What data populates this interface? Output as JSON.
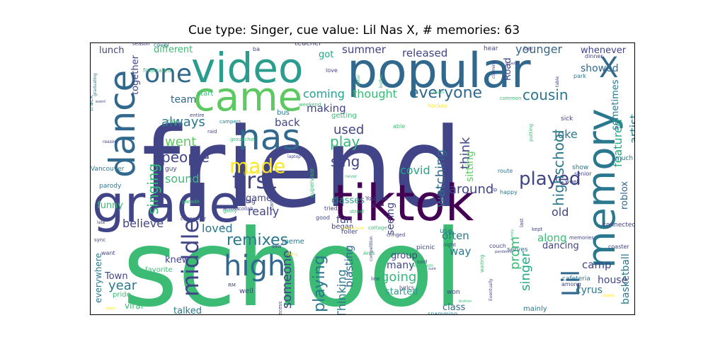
{
  "chart_data": {
    "type": "wordcloud",
    "title": "Cue type: Singer, cue value: Lil Nas X, # memories: 63",
    "words": [
      {
        "text": "friend",
        "color": "#414487",
        "weight": 100
      },
      {
        "text": "school",
        "color": "#3cbb75",
        "weight": 98
      },
      {
        "text": "popular",
        "color": "#31688e",
        "weight": 58
      },
      {
        "text": "tiktok",
        "color": "#440154",
        "weight": 52
      },
      {
        "text": "grade",
        "color": "#414487",
        "weight": 50
      },
      {
        "text": "video",
        "color": "#2a9d8e",
        "weight": 45
      },
      {
        "text": "memory",
        "color": "#2a788e",
        "weight": 44
      },
      {
        "text": "came",
        "color": "#5ec962",
        "weight": 40
      },
      {
        "text": "dance",
        "color": "#31688e",
        "weight": 38
      },
      {
        "text": "nas",
        "color": "#31688e",
        "weight": 38
      },
      {
        "text": "X",
        "color": "#31688e",
        "weight": 30
      },
      {
        "text": "first",
        "color": "#414487",
        "weight": 26
      },
      {
        "text": "high",
        "color": "#31688e",
        "weight": 26
      },
      {
        "text": "middle",
        "color": "#414487",
        "weight": 24
      },
      {
        "text": "Lil",
        "color": "#31688e",
        "weight": 24
      },
      {
        "text": "one",
        "color": "#31688e",
        "weight": 24
      },
      {
        "text": "made",
        "color": "#fde725",
        "weight": 20
      },
      {
        "text": "played",
        "color": "#414487",
        "weight": 18
      },
      {
        "text": "everyone",
        "color": "#31688e",
        "weight": 16
      },
      {
        "text": "highschool",
        "color": "#2a788e",
        "weight": 16
      },
      {
        "text": "remixes",
        "color": "#2a788e",
        "weight": 16
      },
      {
        "text": "playing",
        "color": "#2a788e",
        "weight": 16
      },
      {
        "text": "singing",
        "color": "#35b779",
        "weight": 16
      },
      {
        "text": "watching",
        "color": "#31688e",
        "weight": 15
      },
      {
        "text": "sing",
        "color": "#414487",
        "weight": 15
      },
      {
        "text": "play",
        "color": "#35b779",
        "weight": 15
      },
      {
        "text": "people",
        "color": "#414487",
        "weight": 14
      },
      {
        "text": "cousin",
        "color": "#2a788e",
        "weight": 14
      },
      {
        "text": "went",
        "color": "#5ec962",
        "weight": 14
      },
      {
        "text": "used",
        "color": "#414487",
        "weight": 14
      },
      {
        "text": "year",
        "color": "#2a788e",
        "weight": 14
      },
      {
        "text": "someone",
        "color": "#414487",
        "weight": 14
      },
      {
        "text": "going",
        "color": "#35b779",
        "weight": 14
      },
      {
        "text": "always",
        "color": "#2a788e",
        "weight": 13
      },
      {
        "text": "around",
        "color": "#414487",
        "weight": 13
      },
      {
        "text": "think",
        "color": "#414487",
        "weight": 13
      },
      {
        "text": "prom",
        "color": "#3cbb75",
        "weight": 13
      },
      {
        "text": "singer",
        "color": "#22a884",
        "weight": 13
      },
      {
        "text": "Thinking",
        "color": "#2a788e",
        "weight": 12
      },
      {
        "text": "artist",
        "color": "#2a788e",
        "weight": 12
      },
      {
        "text": "featured",
        "color": "#22a884",
        "weight": 12
      },
      {
        "text": "younger",
        "color": "#31688e",
        "weight": 12
      },
      {
        "text": "coming",
        "color": "#2a9d8e",
        "weight": 12
      },
      {
        "text": "thought",
        "color": "#3cbb75",
        "weight": 12
      },
      {
        "text": "covid",
        "color": "#22a884",
        "weight": 12
      },
      {
        "text": "sound",
        "color": "#3cbb75",
        "weight": 12
      },
      {
        "text": "loved",
        "color": "#2a788e",
        "weight": 12
      },
      {
        "text": "believe",
        "color": "#414487",
        "weight": 12
      },
      {
        "text": "really",
        "color": "#414487",
        "weight": 12
      },
      {
        "text": "released",
        "color": "#414487",
        "weight": 11
      },
      {
        "text": "summer",
        "color": "#414487",
        "weight": 11
      },
      {
        "text": "back",
        "color": "#414487",
        "weight": 11
      },
      {
        "text": "making",
        "color": "#414487",
        "weight": 11
      },
      {
        "text": "sitting",
        "color": "#5ec962",
        "weight": 11
      },
      {
        "text": "along",
        "color": "#3cbb75",
        "weight": 11
      },
      {
        "text": "old",
        "color": "#414487",
        "weight": 11
      },
      {
        "text": "often",
        "color": "#2a788e",
        "weight": 11
      },
      {
        "text": "way",
        "color": "#2a788e",
        "weight": 11
      },
      {
        "text": "blasting",
        "color": "#31688e",
        "weight": 11
      },
      {
        "text": "seeing",
        "color": "#414487",
        "weight": 11
      },
      {
        "text": "fun",
        "color": "#414487",
        "weight": 11
      },
      {
        "text": "many",
        "color": "#414487",
        "weight": 11
      },
      {
        "text": "joke",
        "color": "#2a788e",
        "weight": 11
      },
      {
        "text": "showed",
        "color": "#31688e",
        "weight": 11
      },
      {
        "text": "basketball",
        "color": "#2a788e",
        "weight": 10
      },
      {
        "text": "camp",
        "color": "#414487",
        "weight": 10
      },
      {
        "text": "cyrus",
        "color": "#2a788e",
        "weight": 10
      },
      {
        "text": "dancing",
        "color": "#414487",
        "weight": 10
      },
      {
        "text": "house",
        "color": "#414487",
        "weight": 10
      },
      {
        "text": "roblox",
        "color": "#31688e",
        "weight": 10
      },
      {
        "text": "sometimes",
        "color": "#2a788e",
        "weight": 10
      },
      {
        "text": "whenever",
        "color": "#414487",
        "weight": 10
      },
      {
        "text": "team",
        "color": "#31688e",
        "weight": 10
      },
      {
        "text": "together",
        "color": "#414487",
        "weight": 10
      },
      {
        "text": "Road",
        "color": "#414487",
        "weight": 10
      },
      {
        "text": "got",
        "color": "#22a884",
        "weight": 10
      },
      {
        "text": "lunch",
        "color": "#414487",
        "weight": 10
      },
      {
        "text": "different",
        "color": "#3cbb75",
        "weight": 10
      },
      {
        "text": "Town",
        "color": "#414487",
        "weight": 10
      },
      {
        "text": "knew",
        "color": "#414487",
        "weight": 10
      },
      {
        "text": "funny",
        "color": "#3cbb75",
        "weight": 10
      },
      {
        "text": "class",
        "color": "#31688e",
        "weight": 10
      },
      {
        "text": "classes",
        "color": "#2a9d8e",
        "weight": 10
      },
      {
        "text": "started",
        "color": "#2a9d8e",
        "weight": 10
      },
      {
        "text": "group",
        "color": "#414487",
        "weight": 10
      },
      {
        "text": "game",
        "color": "#414487",
        "weight": 9
      },
      {
        "text": "BTS",
        "color": "#31688e",
        "weight": 9
      },
      {
        "text": "everywhere",
        "color": "#2a788e",
        "weight": 9
      },
      {
        "text": "talked",
        "color": "#2a788e",
        "weight": 9
      },
      {
        "text": "viral",
        "color": "#3cbb75",
        "weight": 9
      },
      {
        "text": "mainly",
        "color": "#2a788e",
        "weight": 8
      },
      {
        "text": "meme",
        "color": "#2a788e",
        "weight": 8
      },
      {
        "text": "start",
        "color": "#3cbb75",
        "weight": 8
      },
      {
        "text": "bus",
        "color": "#2a788e",
        "weight": 8
      },
      {
        "text": "getting",
        "color": "#3cbb75",
        "weight": 8
      },
      {
        "text": "teacher",
        "color": "#414487",
        "weight": 8
      },
      {
        "text": "favorite",
        "color": "#3cbb75",
        "weight": 8
      },
      {
        "text": "pride",
        "color": "#3cbb75",
        "weight": 8
      },
      {
        "text": "began",
        "color": "#414487",
        "weight": 8
      },
      {
        "text": "use",
        "color": "#2a788e",
        "weight": 8
      },
      {
        "text": "picnic",
        "color": "#414487",
        "weight": 8
      },
      {
        "text": "cafeteria",
        "color": "#2a788e",
        "weight": 8
      },
      {
        "text": "serves",
        "color": "#31688e",
        "weight": 8
      },
      {
        "text": "show",
        "color": "#2a788e",
        "weight": 8
      },
      {
        "text": "much",
        "color": "#2a788e",
        "weight": 8
      },
      {
        "text": "connected",
        "color": "#414487",
        "weight": 8
      },
      {
        "text": "well",
        "color": "#414487",
        "weight": 8
      },
      {
        "text": "parody",
        "color": "#2a788e",
        "weight": 7
      },
      {
        "text": "guy",
        "color": "#414487",
        "weight": 7
      },
      {
        "text": "ray",
        "color": "#3cbb75",
        "weight": 7
      },
      {
        "text": "track",
        "color": "#2a788e",
        "weight": 7
      },
      {
        "text": "big",
        "color": "#414487",
        "weight": 7
      },
      {
        "text": "want",
        "color": "#414487",
        "weight": 7
      },
      {
        "text": "Vancouver",
        "color": "#2a788e",
        "weight": 7
      },
      {
        "text": "sick",
        "color": "#414487",
        "weight": 7
      },
      {
        "text": "week",
        "color": "#414487",
        "weight": 7
      },
      {
        "text": "senior",
        "color": "#414487",
        "weight": 7
      },
      {
        "text": "park",
        "color": "#2a788e",
        "weight": 7
      },
      {
        "text": "dinner",
        "color": "#414487",
        "weight": 7
      },
      {
        "text": "bar",
        "color": "#414487",
        "weight": 7
      },
      {
        "text": "hear",
        "color": "#414487",
        "weight": 7
      },
      {
        "text": "cover",
        "color": "#2a788e",
        "weight": 7
      },
      {
        "text": "season",
        "color": "#414487",
        "weight": 6
      },
      {
        "text": "ba",
        "color": "#414487",
        "weight": 7
      },
      {
        "text": "love",
        "color": "#414487",
        "weight": 7
      },
      {
        "text": "frustrated",
        "color": "#3cbb75",
        "weight": 7
      },
      {
        "text": "RM",
        "color": "#414487",
        "weight": 6
      },
      {
        "text": "saw",
        "color": "#414487",
        "weight": 6
      },
      {
        "text": "lyrics",
        "color": "#414487",
        "weight": 7
      },
      {
        "text": "said",
        "color": "#414487",
        "weight": 6
      },
      {
        "text": "won",
        "color": "#414487",
        "weight": 7
      },
      {
        "text": "roller",
        "color": "#414487",
        "weight": 7
      },
      {
        "text": "coaster",
        "color": "#414487",
        "weight": 7
      },
      {
        "text": "kept",
        "color": "#414487",
        "weight": 6
      },
      {
        "text": "last",
        "color": "#414487",
        "weight": 6
      },
      {
        "text": "memories",
        "color": "#414487",
        "weight": 6
      },
      {
        "text": "couch",
        "color": "#414487",
        "weight": 6
      },
      {
        "text": "night",
        "color": "#414487",
        "weight": 6
      },
      {
        "text": "street",
        "color": "#3cbb75",
        "weight": 6
      },
      {
        "text": "tried",
        "color": "#414487",
        "weight": 6
      },
      {
        "text": "good",
        "color": "#414487",
        "weight": 6
      },
      {
        "text": "line",
        "color": "#414487",
        "weight": 6
      },
      {
        "text": "recess",
        "color": "#414487",
        "weight": 6
      },
      {
        "text": "collab",
        "color": "#414487",
        "weight": 6
      },
      {
        "text": "across",
        "color": "#414487",
        "weight": 6
      },
      {
        "text": "Canada",
        "color": "#414487",
        "weight": 6
      },
      {
        "text": "supervisor",
        "color": "#3cbb75",
        "weight": 6
      },
      {
        "text": "able",
        "color": "#3cbb75",
        "weight": 6
      },
      {
        "text": "Youtube",
        "color": "#414487",
        "weight": 6
      },
      {
        "text": "route",
        "color": "#2a788e",
        "weight": 6
      },
      {
        "text": "happy",
        "color": "#2a788e",
        "weight": 6
      },
      {
        "text": "hockey",
        "color": "#fde725",
        "weight": 6
      },
      {
        "text": "common",
        "color": "#3cbb75",
        "weight": 6
      },
      {
        "text": "putting",
        "color": "#3cbb75",
        "weight": 6
      },
      {
        "text": "weekend",
        "color": "#3cbb75",
        "weight": 6
      },
      {
        "text": "campers",
        "color": "#2a788e",
        "weight": 6
      },
      {
        "text": "groupchat",
        "color": "#3cbb75",
        "weight": 6
      },
      {
        "text": "raid",
        "color": "#414487",
        "weight": 6
      },
      {
        "text": "entire",
        "color": "#414487",
        "weight": 6
      },
      {
        "text": "reason",
        "color": "#414487",
        "weight": 6
      },
      {
        "text": "late",
        "color": "#414487",
        "weight": 6
      },
      {
        "text": "sync",
        "color": "#414487",
        "weight": 6
      },
      {
        "text": "goofy",
        "color": "#3cbb75",
        "weight": 6
      },
      {
        "text": "generally",
        "color": "#fde725",
        "weight": 5
      },
      {
        "text": "laptop",
        "color": "#414487",
        "weight": 5
      },
      {
        "text": "never",
        "color": "#3cbb75",
        "weight": 5
      },
      {
        "text": "counsellor",
        "color": "#414487",
        "weight": 6
      },
      {
        "text": "parade",
        "color": "#3cbb75",
        "weight": 6
      },
      {
        "text": "sister",
        "color": "#3cbb75",
        "weight": 5
      },
      {
        "text": "bother",
        "color": "#3cbb75",
        "weight": 5
      },
      {
        "text": "claiming",
        "color": "#414487",
        "weight": 5
      },
      {
        "text": "amazed",
        "color": "#414487",
        "weight": 5
      },
      {
        "text": "table",
        "color": "#414487",
        "weight": 5
      },
      {
        "text": "graduating",
        "color": "#2a788e",
        "weight": 5
      },
      {
        "text": "event",
        "color": "#414487",
        "weight": 5
      },
      {
        "text": "fourth",
        "color": "#3cbb75",
        "weight": 5
      },
      {
        "text": "family",
        "color": "#3cbb75",
        "weight": 5
      },
      {
        "text": "pandemic",
        "color": "#414487",
        "weight": 5
      },
      {
        "text": "waiting",
        "color": "#3cbb75",
        "weight": 6
      },
      {
        "text": "cringed",
        "color": "#414487",
        "weight": 6
      },
      {
        "text": "competition",
        "color": "#414487",
        "weight": 5
      },
      {
        "text": "Area",
        "color": "#3cbb75",
        "weight": 6
      },
      {
        "text": "sure",
        "color": "#414487",
        "weight": 5
      },
      {
        "text": "Eventually",
        "color": "#414487",
        "weight": 5
      },
      {
        "text": "among",
        "color": "#414487",
        "weight": 6
      },
      {
        "text": "shortly",
        "color": "#fde725",
        "weight": 5
      },
      {
        "text": "brother",
        "color": "#3cbb75",
        "weight": 5
      },
      {
        "text": "livingroom",
        "color": "#3cbb75",
        "weight": 5
      },
      {
        "text": "spamming",
        "color": "#2a788e",
        "weight": 6
      },
      {
        "text": "collaboration",
        "color": "#3cbb75",
        "weight": 5
      },
      {
        "text": "thing",
        "color": "#fde725",
        "weight": 5
      },
      {
        "text": "point",
        "color": "#3cbb75",
        "weight": 5
      },
      {
        "text": "learn",
        "color": "#fde725",
        "weight": 5
      },
      {
        "text": "wonderland",
        "color": "#fde725",
        "weight": 5
      },
      {
        "text": "cottage",
        "color": "#3cbb75",
        "weight": 6
      },
      {
        "text": "lip",
        "color": "#414487",
        "weight": 5
      },
      {
        "text": "b",
        "color": "#414487",
        "weight": 5
      },
      {
        "text": "l",
        "color": "#414487",
        "weight": 5
      }
    ]
  }
}
